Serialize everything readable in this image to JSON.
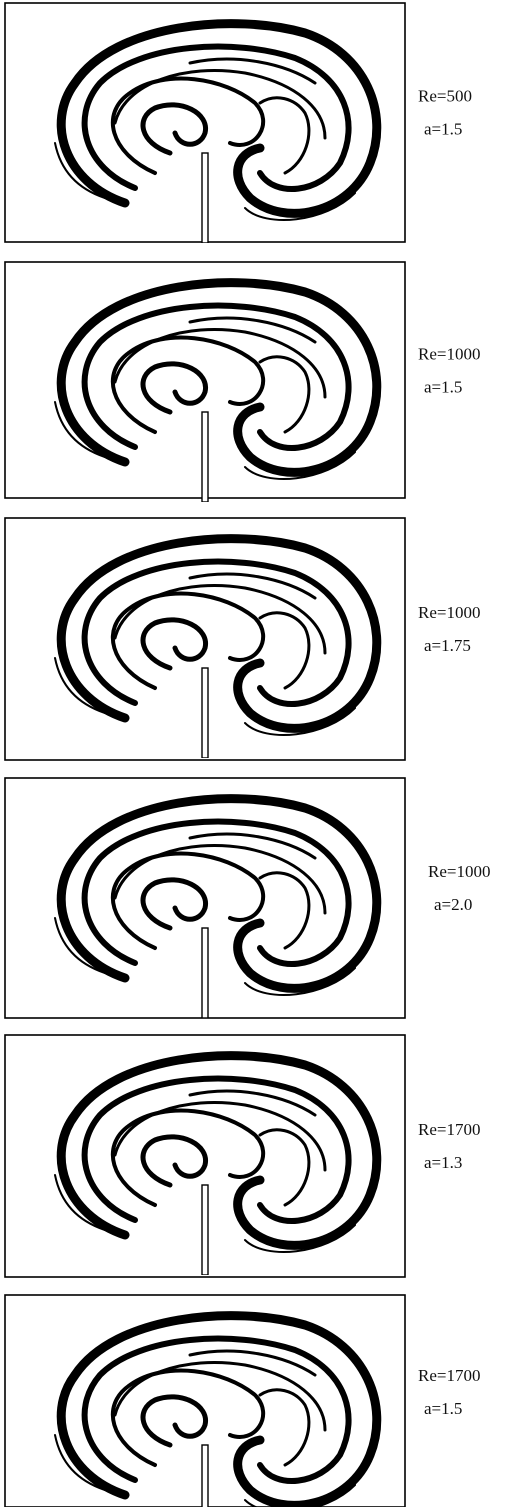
{
  "panels": [
    {
      "re": "Re=500",
      "a": "a=1.5"
    },
    {
      "re": "Re=1000",
      "a": "a=1.5"
    },
    {
      "re": "Re=1000",
      "a": "a=1.75"
    },
    {
      "re": "Re=1000",
      "a": "a=2.0"
    },
    {
      "re": "Re=1700",
      "a": "a=1.3"
    },
    {
      "re": "Re=1700",
      "a": "a=1.5"
    }
  ]
}
